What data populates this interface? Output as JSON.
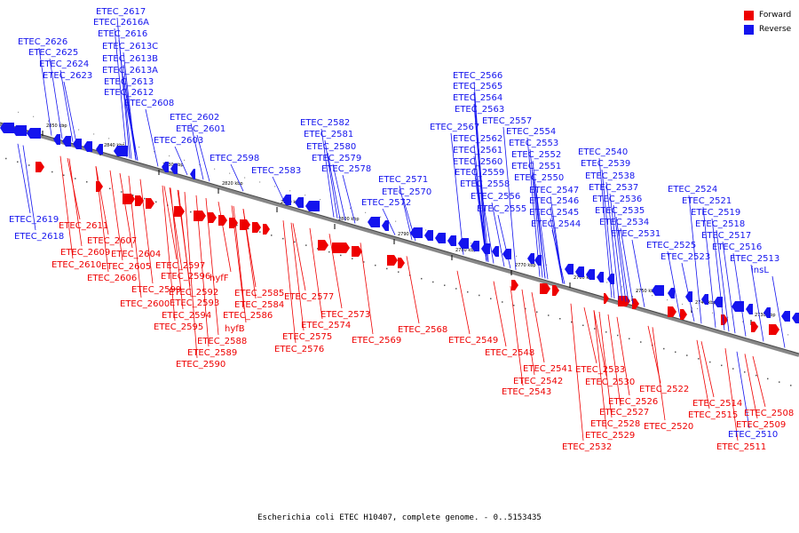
{
  "caption": "Escherichia coli ETEC H10407, complete genome. - 0..5153435",
  "legend": [
    {
      "label": "Forward",
      "color": "#ee0000"
    },
    {
      "label": "Reverse",
      "color": "#1414ee"
    }
  ],
  "colors": {
    "forward": "#ee0000",
    "reverse": "#1414ee",
    "backbone": "#888888"
  },
  "ticks": [
    "2850 kbp",
    "2840 kbp",
    "2830 kbp",
    "2820 kbp",
    "2810 kbp",
    "2800 kbp",
    "2790 kbp",
    "2780 kbp",
    "2770 kbp",
    "2760 kbp",
    "2750 kbp",
    "2740 kbp",
    "2730 kbp"
  ],
  "reverse_labels": [
    "ETEC_2617",
    "ETEC_2616A",
    "ETEC_2616",
    "ETEC_2626",
    "ETEC_2613C",
    "ETEC_2625",
    "ETEC_2613B",
    "ETEC_2624",
    "ETEC_2613A",
    "ETEC_2623",
    "ETEC_2613",
    "ETEC_2612",
    "ETEC_2608",
    "ETEC_2602",
    "ETEC_2601",
    "ETEC_2603",
    "ETEC_2598",
    "ETEC_2583",
    "ETEC_2582",
    "ETEC_2581",
    "ETEC_2580",
    "ETEC_2579",
    "ETEC_2578",
    "ETEC_2571",
    "ETEC_2570",
    "ETEC_2572",
    "ETEC_2566",
    "ETEC_2565",
    "ETEC_2564",
    "ETEC_2563",
    "ETEC_2567",
    "ETEC_2557",
    "ETEC_2562",
    "ETEC_2554",
    "ETEC_2561",
    "ETEC_2553",
    "ETEC_2560",
    "ETEC_2552",
    "ETEC_2559",
    "ETEC_2551",
    "ETEC_2558",
    "ETEC_2550",
    "ETEC_2556",
    "ETEC_2547",
    "ETEC_2555",
    "ETEC_2546",
    "ETEC_2545",
    "ETEC_2544",
    "ETEC_2540",
    "ETEC_2539",
    "ETEC_2538",
    "ETEC_2537",
    "ETEC_2536",
    "ETEC_2535",
    "ETEC_2534",
    "ETEC_2531",
    "ETEC_2524",
    "ETEC_2521",
    "ETEC_2519",
    "ETEC_2518",
    "ETEC_2517",
    "ETEC_2525",
    "ETEC_2516",
    "ETEC_2523",
    "ETEC_2513",
    "insL",
    "ETEC_2619",
    "ETEC_2618",
    "ETEC_2510"
  ],
  "forward_labels": [
    "ETEC_2611",
    "ETEC_2607",
    "ETEC_2609",
    "ETEC_2604",
    "ETEC_2610",
    "ETEC_2605",
    "ETEC_2606",
    "ETEC_2597",
    "ETEC_2596",
    "hyfF",
    "ETEC_2599",
    "ETEC_2592",
    "ETEC_2600",
    "ETEC_2593",
    "ETEC_2585",
    "ETEC_2584",
    "ETEC_2594",
    "ETEC_2586",
    "ETEC_2595",
    "hyfB",
    "ETEC_2588",
    "ETEC_2589",
    "ETEC_2590",
    "ETEC_2577",
    "ETEC_2574",
    "ETEC_2573",
    "ETEC_2575",
    "ETEC_2576",
    "ETEC_2569",
    "ETEC_2568",
    "ETEC_2549",
    "ETEC_2548",
    "ETEC_2541",
    "ETEC_2542",
    "ETEC_2543",
    "ETEC_2533",
    "ETEC_2530",
    "ETEC_2522",
    "ETEC_2526",
    "ETEC_2527",
    "ETEC_2528",
    "ETEC_2520",
    "ETEC_2529",
    "ETEC_2532",
    "ETEC_2514",
    "ETEC_2515",
    "ETEC_2508",
    "ETEC_2509",
    "ETEC_2511"
  ]
}
